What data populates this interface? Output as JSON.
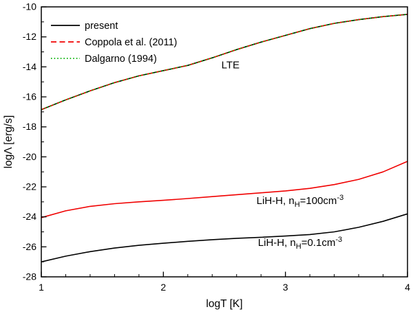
{
  "chart_data": {
    "type": "line",
    "title": "",
    "xlabel": "logT [K]",
    "ylabel": "logΛ [erg/s]",
    "xlim": [
      1,
      4
    ],
    "ylim": [
      -28,
      -10
    ],
    "grid": false,
    "x_major_ticks": [
      1,
      2,
      3,
      4
    ],
    "y_major_ticks": [
      -28,
      -26,
      -24,
      -22,
      -20,
      -18,
      -16,
      -14,
      -12,
      -10
    ],
    "x_minor_step": 0.2,
    "y_minor_step": 1,
    "axis_color": "#000000",
    "colors": {
      "black": "#000000",
      "red": "#f00000",
      "green": "#00b000"
    },
    "legend": {
      "position": "top-left",
      "entries": [
        {
          "label": "present",
          "color": "#000000",
          "dash": "solid"
        },
        {
          "label": "Coppola et al. (2011)",
          "color": "#f00000",
          "dash": "dashed"
        },
        {
          "label": "Dalgarno (1994)",
          "color": "#00b000",
          "dash": "dotted"
        }
      ]
    },
    "series": [
      {
        "name": "present-LTE",
        "color": "#000000",
        "dash": "solid",
        "x": [
          1,
          1.2,
          1.4,
          1.6,
          1.8,
          2,
          2.2,
          2.4,
          2.6,
          2.8,
          3,
          3.2,
          3.4,
          3.6,
          3.8,
          4
        ],
        "y": [
          -16.85,
          -16.2,
          -15.6,
          -15.05,
          -14.6,
          -14.25,
          -13.9,
          -13.4,
          -12.85,
          -12.35,
          -11.9,
          -11.45,
          -11.1,
          -10.85,
          -10.65,
          -10.5
        ]
      },
      {
        "name": "coppola-2011-LTE",
        "color": "#f00000",
        "dash": "dashed",
        "x": [
          1,
          1.2,
          1.4,
          1.6,
          1.8,
          2,
          2.2,
          2.4,
          2.6,
          2.8,
          3,
          3.2,
          3.4,
          3.6,
          3.8,
          4
        ],
        "y": [
          -16.85,
          -16.2,
          -15.6,
          -15.05,
          -14.6,
          -14.25,
          -13.9,
          -13.4,
          -12.85,
          -12.35,
          -11.9,
          -11.45,
          -11.1,
          -10.85,
          -10.65,
          -10.5
        ]
      },
      {
        "name": "dalgarno-1994-LTE",
        "color": "#00b000",
        "dash": "dotted",
        "x": [
          1,
          1.2,
          1.4,
          1.6,
          1.8,
          2,
          2.2,
          2.4,
          2.6,
          2.8,
          3,
          3.2,
          3.4,
          3.6,
          3.8,
          4
        ],
        "y": [
          -16.85,
          -16.2,
          -15.6,
          -15.05,
          -14.6,
          -14.25,
          -13.9,
          -13.4,
          -12.85,
          -12.35,
          -11.9,
          -11.45,
          -11.1,
          -10.85,
          -10.65,
          -10.5
        ]
      },
      {
        "name": "LiH-H-nH-100",
        "color": "#f00000",
        "dash": "solid",
        "x": [
          1,
          1.2,
          1.4,
          1.6,
          1.8,
          2,
          2.2,
          2.4,
          2.6,
          2.8,
          3,
          3.2,
          3.4,
          3.6,
          3.8,
          4
        ],
        "y": [
          -24.05,
          -23.6,
          -23.3,
          -23.12,
          -23.0,
          -22.9,
          -22.78,
          -22.65,
          -22.52,
          -22.4,
          -22.27,
          -22.1,
          -21.85,
          -21.5,
          -21.0,
          -20.3
        ]
      },
      {
        "name": "LiH-H-nH-0.1",
        "color": "#000000",
        "dash": "solid",
        "x": [
          1,
          1.2,
          1.4,
          1.6,
          1.8,
          2,
          2.2,
          2.4,
          2.6,
          2.8,
          3,
          3.2,
          3.4,
          3.6,
          3.8,
          4
        ],
        "y": [
          -27.0,
          -26.62,
          -26.32,
          -26.08,
          -25.9,
          -25.76,
          -25.63,
          -25.52,
          -25.43,
          -25.36,
          -25.28,
          -25.18,
          -25.0,
          -24.7,
          -24.3,
          -23.8
        ]
      }
    ],
    "annotations": [
      {
        "name": "lte-label",
        "x": 2.55,
        "y": -14.1,
        "parts": [
          {
            "t": "LTE"
          }
        ]
      },
      {
        "name": "n100-label",
        "x": 3.12,
        "y": -23.15,
        "parts": [
          {
            "t": "LiH-H, n"
          },
          {
            "t": "H",
            "script": "sub"
          },
          {
            "t": "=100cm"
          },
          {
            "t": "-3",
            "script": "sup"
          }
        ]
      },
      {
        "name": "n01-label",
        "x": 3.12,
        "y": -25.95,
        "parts": [
          {
            "t": "LiH-H, n"
          },
          {
            "t": "H",
            "script": "sub"
          },
          {
            "t": "=0.1cm"
          },
          {
            "t": "-3",
            "script": "sup"
          }
        ]
      }
    ]
  }
}
